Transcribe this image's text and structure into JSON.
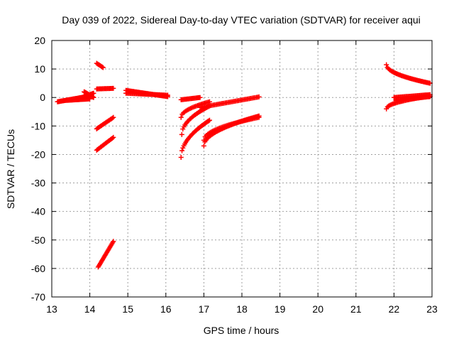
{
  "chart_data": {
    "type": "scatter",
    "title": "Day 039 of 2022, Sidereal Day-to-day VTEC variation (SDTVAR) for receiver aqui",
    "xlabel": "GPS time / hours",
    "ylabel": "SDTVAR / TECUs",
    "xlim": [
      13,
      23
    ],
    "ylim": [
      -70,
      20
    ],
    "xticks": [
      13,
      14,
      15,
      16,
      17,
      18,
      19,
      20,
      21,
      22,
      23
    ],
    "yticks": [
      20,
      10,
      0,
      -10,
      -20,
      -30,
      -40,
      -50,
      -60,
      -70
    ],
    "grid": true,
    "marker": "+",
    "series": [
      {
        "name": "SDTVAR",
        "color": "#ff0000",
        "tracks": [
          {
            "x0": 13.15,
            "x1": 14.0,
            "y0": -1.5,
            "y1": 0.5,
            "n": 60
          },
          {
            "x0": 13.4,
            "x1": 14.0,
            "y0": -1.0,
            "y1": -0.5,
            "n": 30
          },
          {
            "x0": 13.7,
            "x1": 14.1,
            "y0": -0.5,
            "y1": 1.5,
            "n": 25
          },
          {
            "x0": 13.85,
            "x1": 14.1,
            "y0": 2.0,
            "y1": 0.0,
            "n": 20
          },
          {
            "x0": 14.18,
            "x1": 14.35,
            "y0": 12.0,
            "y1": 10.5,
            "n": 8
          },
          {
            "x0": 14.18,
            "x1": 14.62,
            "y0": 3.0,
            "y1": 3.2,
            "n": 18
          },
          {
            "x0": 14.18,
            "x1": 14.62,
            "y0": -11.0,
            "y1": -7.0,
            "n": 18
          },
          {
            "x0": 14.18,
            "x1": 14.62,
            "y0": -18.5,
            "y1": -14.0,
            "n": 18
          },
          {
            "x0": 14.22,
            "x1": 14.62,
            "y0": -59.5,
            "y1": -50.5,
            "n": 22
          },
          {
            "x0": 14.95,
            "x1": 16.05,
            "y0": 2.5,
            "y1": 0.3,
            "n": 45
          },
          {
            "x0": 14.95,
            "x1": 16.05,
            "y0": 1.5,
            "y1": 0.8,
            "n": 40
          },
          {
            "x0": 16.4,
            "x1": 16.9,
            "y0": -0.8,
            "y1": 0.0,
            "n": 20
          },
          {
            "x0": 16.4,
            "x1": 17.15,
            "y0": -7.0,
            "y1": -1.5,
            "n": 25,
            "shape": "sqrt"
          },
          {
            "x0": 16.42,
            "x1": 17.15,
            "y0": -13.0,
            "y1": -3.0,
            "n": 28,
            "shape": "sqrt"
          },
          {
            "x0": 16.4,
            "x1": 17.15,
            "y0": -21.0,
            "y1": -8.0,
            "n": 32,
            "shape": "sqrt"
          },
          {
            "x0": 16.9,
            "x1": 18.45,
            "y0": -3.5,
            "y1": 0.2,
            "n": 50
          },
          {
            "x0": 17.0,
            "x1": 18.45,
            "y0": -17.0,
            "y1": -6.5,
            "n": 55,
            "shape": "sqrt"
          },
          {
            "x0": 17.0,
            "x1": 18.45,
            "y0": -15.0,
            "y1": -7.0,
            "n": 45,
            "shape": "sqrt"
          },
          {
            "x0": 21.8,
            "x1": 22.95,
            "y0": 11.5,
            "y1": 5.0,
            "n": 45,
            "shape": "sqrt"
          },
          {
            "x0": 21.8,
            "x1": 22.95,
            "y0": -4.0,
            "y1": 0.5,
            "n": 40,
            "shape": "sqrt"
          },
          {
            "x0": 22.0,
            "x1": 22.95,
            "y0": 0.0,
            "y1": 1.0,
            "n": 35
          },
          {
            "x0": 22.05,
            "x1": 22.95,
            "y0": -1.0,
            "y1": 0.3,
            "n": 30
          }
        ]
      }
    ]
  }
}
